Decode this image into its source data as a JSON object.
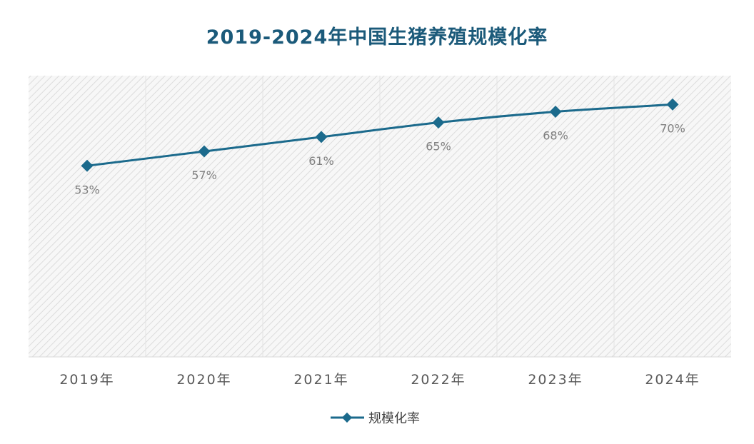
{
  "chart_data": {
    "type": "line",
    "title": "2019-2024年中国生猪养殖规模化率",
    "categories": [
      "2019年",
      "2020年",
      "2021年",
      "2022年",
      "2023年",
      "2024年"
    ],
    "series": [
      {
        "name": "规模化率",
        "values": [
          53,
          57,
          61,
          65,
          68,
          70
        ],
        "labels": [
          "53%",
          "57%",
          "61%",
          "65%",
          "68%",
          "70%"
        ],
        "color": "#1b6a8c"
      }
    ],
    "ylim": [
      0,
      78
    ],
    "grid": "vertical category separators",
    "legend": "bottom-center"
  }
}
